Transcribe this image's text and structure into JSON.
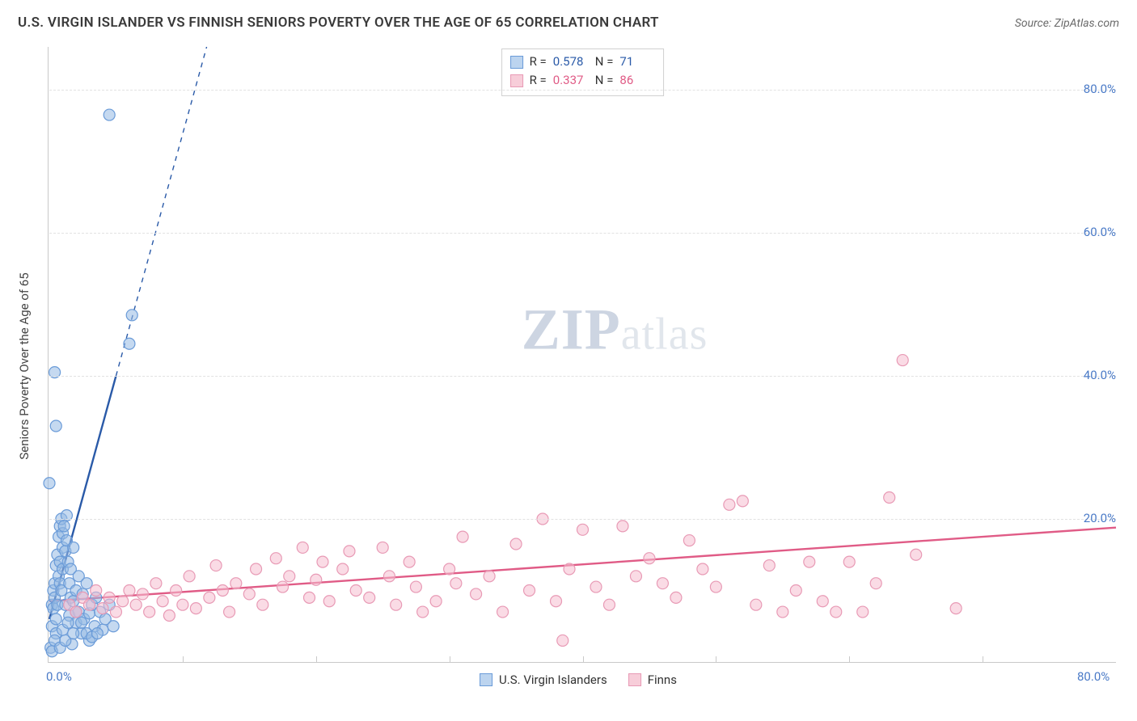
{
  "title": "U.S. VIRGIN ISLANDER VS FINNISH SENIORS POVERTY OVER THE AGE OF 65 CORRELATION CHART",
  "source_prefix": "Source: ",
  "source_name": "ZipAtlas.com",
  "ylabel": "Seniors Poverty Over the Age of 65",
  "watermark": {
    "zip": "ZIP",
    "atlas": "atlas"
  },
  "chart": {
    "type": "scatter",
    "xlim": [
      0,
      80
    ],
    "ylim": [
      0,
      86
    ],
    "xtick_start": 0,
    "xtick_step": 10,
    "xtick_labels_at": [
      0,
      80
    ],
    "ytick_start": 20,
    "ytick_step": 20,
    "ytick_max": 80,
    "x_format_suffix": "%",
    "y_format_suffix": "%",
    "decimals": 1,
    "grid_color_h": "#e1e1e1",
    "axis_color": "#c9c9c9",
    "tick_label_color": "#4a7ac7",
    "background_color": "#ffffff",
    "point_radius": 7,
    "point_stroke_width": 1.2,
    "trend_line_width": 2.4,
    "trend_dash_width": 1.4
  },
  "legend_top": {
    "r_label": "R =",
    "n_label": "N =",
    "rows": [
      {
        "series": "usvi",
        "r": "0.578",
        "n": "71"
      },
      {
        "series": "finns",
        "r": "0.337",
        "n": "86"
      }
    ]
  },
  "legend_bottom": [
    {
      "series": "usvi",
      "label": "U.S. Virgin Islanders"
    },
    {
      "series": "finns",
      "label": "Finns"
    }
  ],
  "series": {
    "usvi": {
      "color_stroke": "#6a9bd8",
      "color_fill": "rgba(149,186,228,0.55)",
      "trend_color": "#2a5aa8",
      "trend": {
        "x1": 0,
        "y1": 6,
        "x2": 5.0,
        "y2": 40
      },
      "trend_dash": {
        "x1": 5.0,
        "y1": 40,
        "x2": 11.8,
        "y2": 86
      },
      "swatch_fill": "#bcd4ef",
      "swatch_border": "#6a9bd8",
      "points": [
        [
          0.0,
          25.0
        ],
        [
          0.1,
          2.0
        ],
        [
          0.2,
          5.0
        ],
        [
          0.2,
          8.0
        ],
        [
          0.3,
          7.5
        ],
        [
          0.3,
          10.0
        ],
        [
          0.4,
          9.0
        ],
        [
          0.4,
          11.0
        ],
        [
          0.5,
          6.0
        ],
        [
          0.5,
          13.5
        ],
        [
          0.5,
          4.0
        ],
        [
          0.6,
          15.0
        ],
        [
          0.6,
          8.0
        ],
        [
          0.7,
          12.0
        ],
        [
          0.7,
          17.5
        ],
        [
          0.8,
          19.0
        ],
        [
          0.8,
          14.0
        ],
        [
          0.8,
          11.0
        ],
        [
          0.9,
          10.0
        ],
        [
          0.9,
          20.0
        ],
        [
          1.0,
          18.0
        ],
        [
          1.0,
          16.0
        ],
        [
          1.0,
          13.0
        ],
        [
          1.1,
          19.0
        ],
        [
          1.2,
          15.5
        ],
        [
          1.2,
          8.0
        ],
        [
          1.3,
          17.0
        ],
        [
          1.3,
          20.5
        ],
        [
          1.4,
          14.0
        ],
        [
          1.5,
          6.5
        ],
        [
          1.5,
          11.0
        ],
        [
          1.6,
          9.0
        ],
        [
          1.6,
          13.0
        ],
        [
          1.7,
          2.5
        ],
        [
          1.8,
          8.5
        ],
        [
          1.8,
          16.0
        ],
        [
          2.0,
          5.5
        ],
        [
          2.0,
          10.0
        ],
        [
          2.2,
          12.0
        ],
        [
          2.2,
          7.0
        ],
        [
          2.4,
          4.0
        ],
        [
          2.5,
          9.5
        ],
        [
          2.6,
          6.0
        ],
        [
          2.8,
          11.0
        ],
        [
          3.0,
          3.0
        ],
        [
          3.0,
          6.8
        ],
        [
          3.2,
          8.0
        ],
        [
          3.4,
          5.0
        ],
        [
          3.5,
          9.0
        ],
        [
          3.8,
          7.0
        ],
        [
          4.0,
          4.5
        ],
        [
          4.2,
          6.0
        ],
        [
          4.5,
          8.0
        ],
        [
          4.8,
          5.0
        ],
        [
          0.5,
          33.0
        ],
        [
          0.4,
          40.5
        ],
        [
          4.5,
          76.5
        ],
        [
          6.0,
          44.5
        ],
        [
          6.2,
          48.5
        ],
        [
          0.2,
          1.5
        ],
        [
          0.4,
          3.0
        ],
        [
          0.8,
          2.0
        ],
        [
          1.0,
          4.5
        ],
        [
          1.2,
          3.0
        ],
        [
          1.4,
          5.5
        ],
        [
          1.8,
          4.0
        ],
        [
          2.0,
          7.0
        ],
        [
          2.4,
          5.5
        ],
        [
          2.8,
          4.0
        ],
        [
          3.2,
          3.5
        ],
        [
          3.6,
          4.0
        ]
      ]
    },
    "finns": {
      "color_stroke": "#e89ab5",
      "color_fill": "rgba(245,190,208,0.55)",
      "trend_color": "#e05b86",
      "trend": {
        "x1": 0,
        "y1": 8.5,
        "x2": 80,
        "y2": 18.8
      },
      "swatch_fill": "#f7cdd9",
      "swatch_border": "#e89ab5",
      "points": [
        [
          1.5,
          8.0
        ],
        [
          2.0,
          7.0
        ],
        [
          2.5,
          9.0
        ],
        [
          3.0,
          8.0
        ],
        [
          3.5,
          10.0
        ],
        [
          4.0,
          7.5
        ],
        [
          4.5,
          9.0
        ],
        [
          5.0,
          7.0
        ],
        [
          5.5,
          8.5
        ],
        [
          6.0,
          10.0
        ],
        [
          6.5,
          8.0
        ],
        [
          7.0,
          9.5
        ],
        [
          7.5,
          7.0
        ],
        [
          8.0,
          11.0
        ],
        [
          8.5,
          8.5
        ],
        [
          9.0,
          6.5
        ],
        [
          9.5,
          10.0
        ],
        [
          10,
          8.0
        ],
        [
          10.5,
          12.0
        ],
        [
          11,
          7.5
        ],
        [
          12,
          9.0
        ],
        [
          12.5,
          13.5
        ],
        [
          13,
          10.0
        ],
        [
          13.5,
          7.0
        ],
        [
          14,
          11.0
        ],
        [
          15,
          9.5
        ],
        [
          15.5,
          13.0
        ],
        [
          16,
          8.0
        ],
        [
          17,
          14.5
        ],
        [
          17.5,
          10.5
        ],
        [
          18,
          12.0
        ],
        [
          19,
          16.0
        ],
        [
          19.5,
          9.0
        ],
        [
          20,
          11.5
        ],
        [
          20.5,
          14.0
        ],
        [
          21,
          8.5
        ],
        [
          22,
          13.0
        ],
        [
          22.5,
          15.5
        ],
        [
          23,
          10.0
        ],
        [
          24,
          9.0
        ],
        [
          25,
          16.0
        ],
        [
          25.5,
          12.0
        ],
        [
          26,
          8.0
        ],
        [
          27,
          14.0
        ],
        [
          27.5,
          10.5
        ],
        [
          28,
          7.0
        ],
        [
          29,
          8.5
        ],
        [
          30,
          13.0
        ],
        [
          30.5,
          11.0
        ],
        [
          31,
          17.5
        ],
        [
          32,
          9.5
        ],
        [
          33,
          12.0
        ],
        [
          34,
          7.0
        ],
        [
          35,
          16.5
        ],
        [
          36,
          10.0
        ],
        [
          37,
          20.0
        ],
        [
          38,
          8.5
        ],
        [
          39,
          13.0
        ],
        [
          40,
          18.5
        ],
        [
          41,
          10.5
        ],
        [
          42,
          8.0
        ],
        [
          43,
          19.0
        ],
        [
          44,
          12.0
        ],
        [
          45,
          14.5
        ],
        [
          46,
          11.0
        ],
        [
          47,
          9.0
        ],
        [
          48,
          17.0
        ],
        [
          49,
          13.0
        ],
        [
          50,
          10.5
        ],
        [
          51,
          22.0
        ],
        [
          52,
          22.5
        ],
        [
          53,
          8.0
        ],
        [
          54,
          13.5
        ],
        [
          55,
          7.0
        ],
        [
          64,
          42.2
        ],
        [
          56,
          10.0
        ],
        [
          57,
          14.0
        ],
        [
          38.5,
          3.0
        ],
        [
          58,
          8.5
        ],
        [
          59,
          7.0
        ],
        [
          60,
          14.0
        ],
        [
          61,
          7.0
        ],
        [
          62,
          11.0
        ],
        [
          63,
          23.0
        ],
        [
          65,
          15.0
        ],
        [
          68,
          7.5
        ]
      ]
    }
  }
}
